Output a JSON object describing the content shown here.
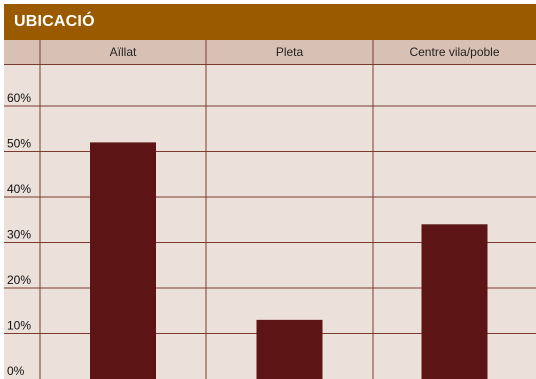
{
  "chart_data": {
    "type": "bar",
    "title": "UBICACIÓ",
    "categories": [
      "Aïllat",
      "Pleta",
      "Centre vila/poble"
    ],
    "values": [
      52,
      13,
      34
    ],
    "ylim": [
      0,
      67
    ],
    "yticks": [
      "0%",
      "10%",
      "20%",
      "30%",
      "40%",
      "50%",
      "60%"
    ],
    "ytick_values": [
      0,
      10,
      20,
      30,
      40,
      50,
      60
    ],
    "grid": true,
    "colors": {
      "bar": "#5c1414",
      "title_bar": "#9a5a00",
      "plot_bg": "#ece0da",
      "header_bg": "#d9c0b4",
      "grid": "#7a3b30"
    }
  }
}
